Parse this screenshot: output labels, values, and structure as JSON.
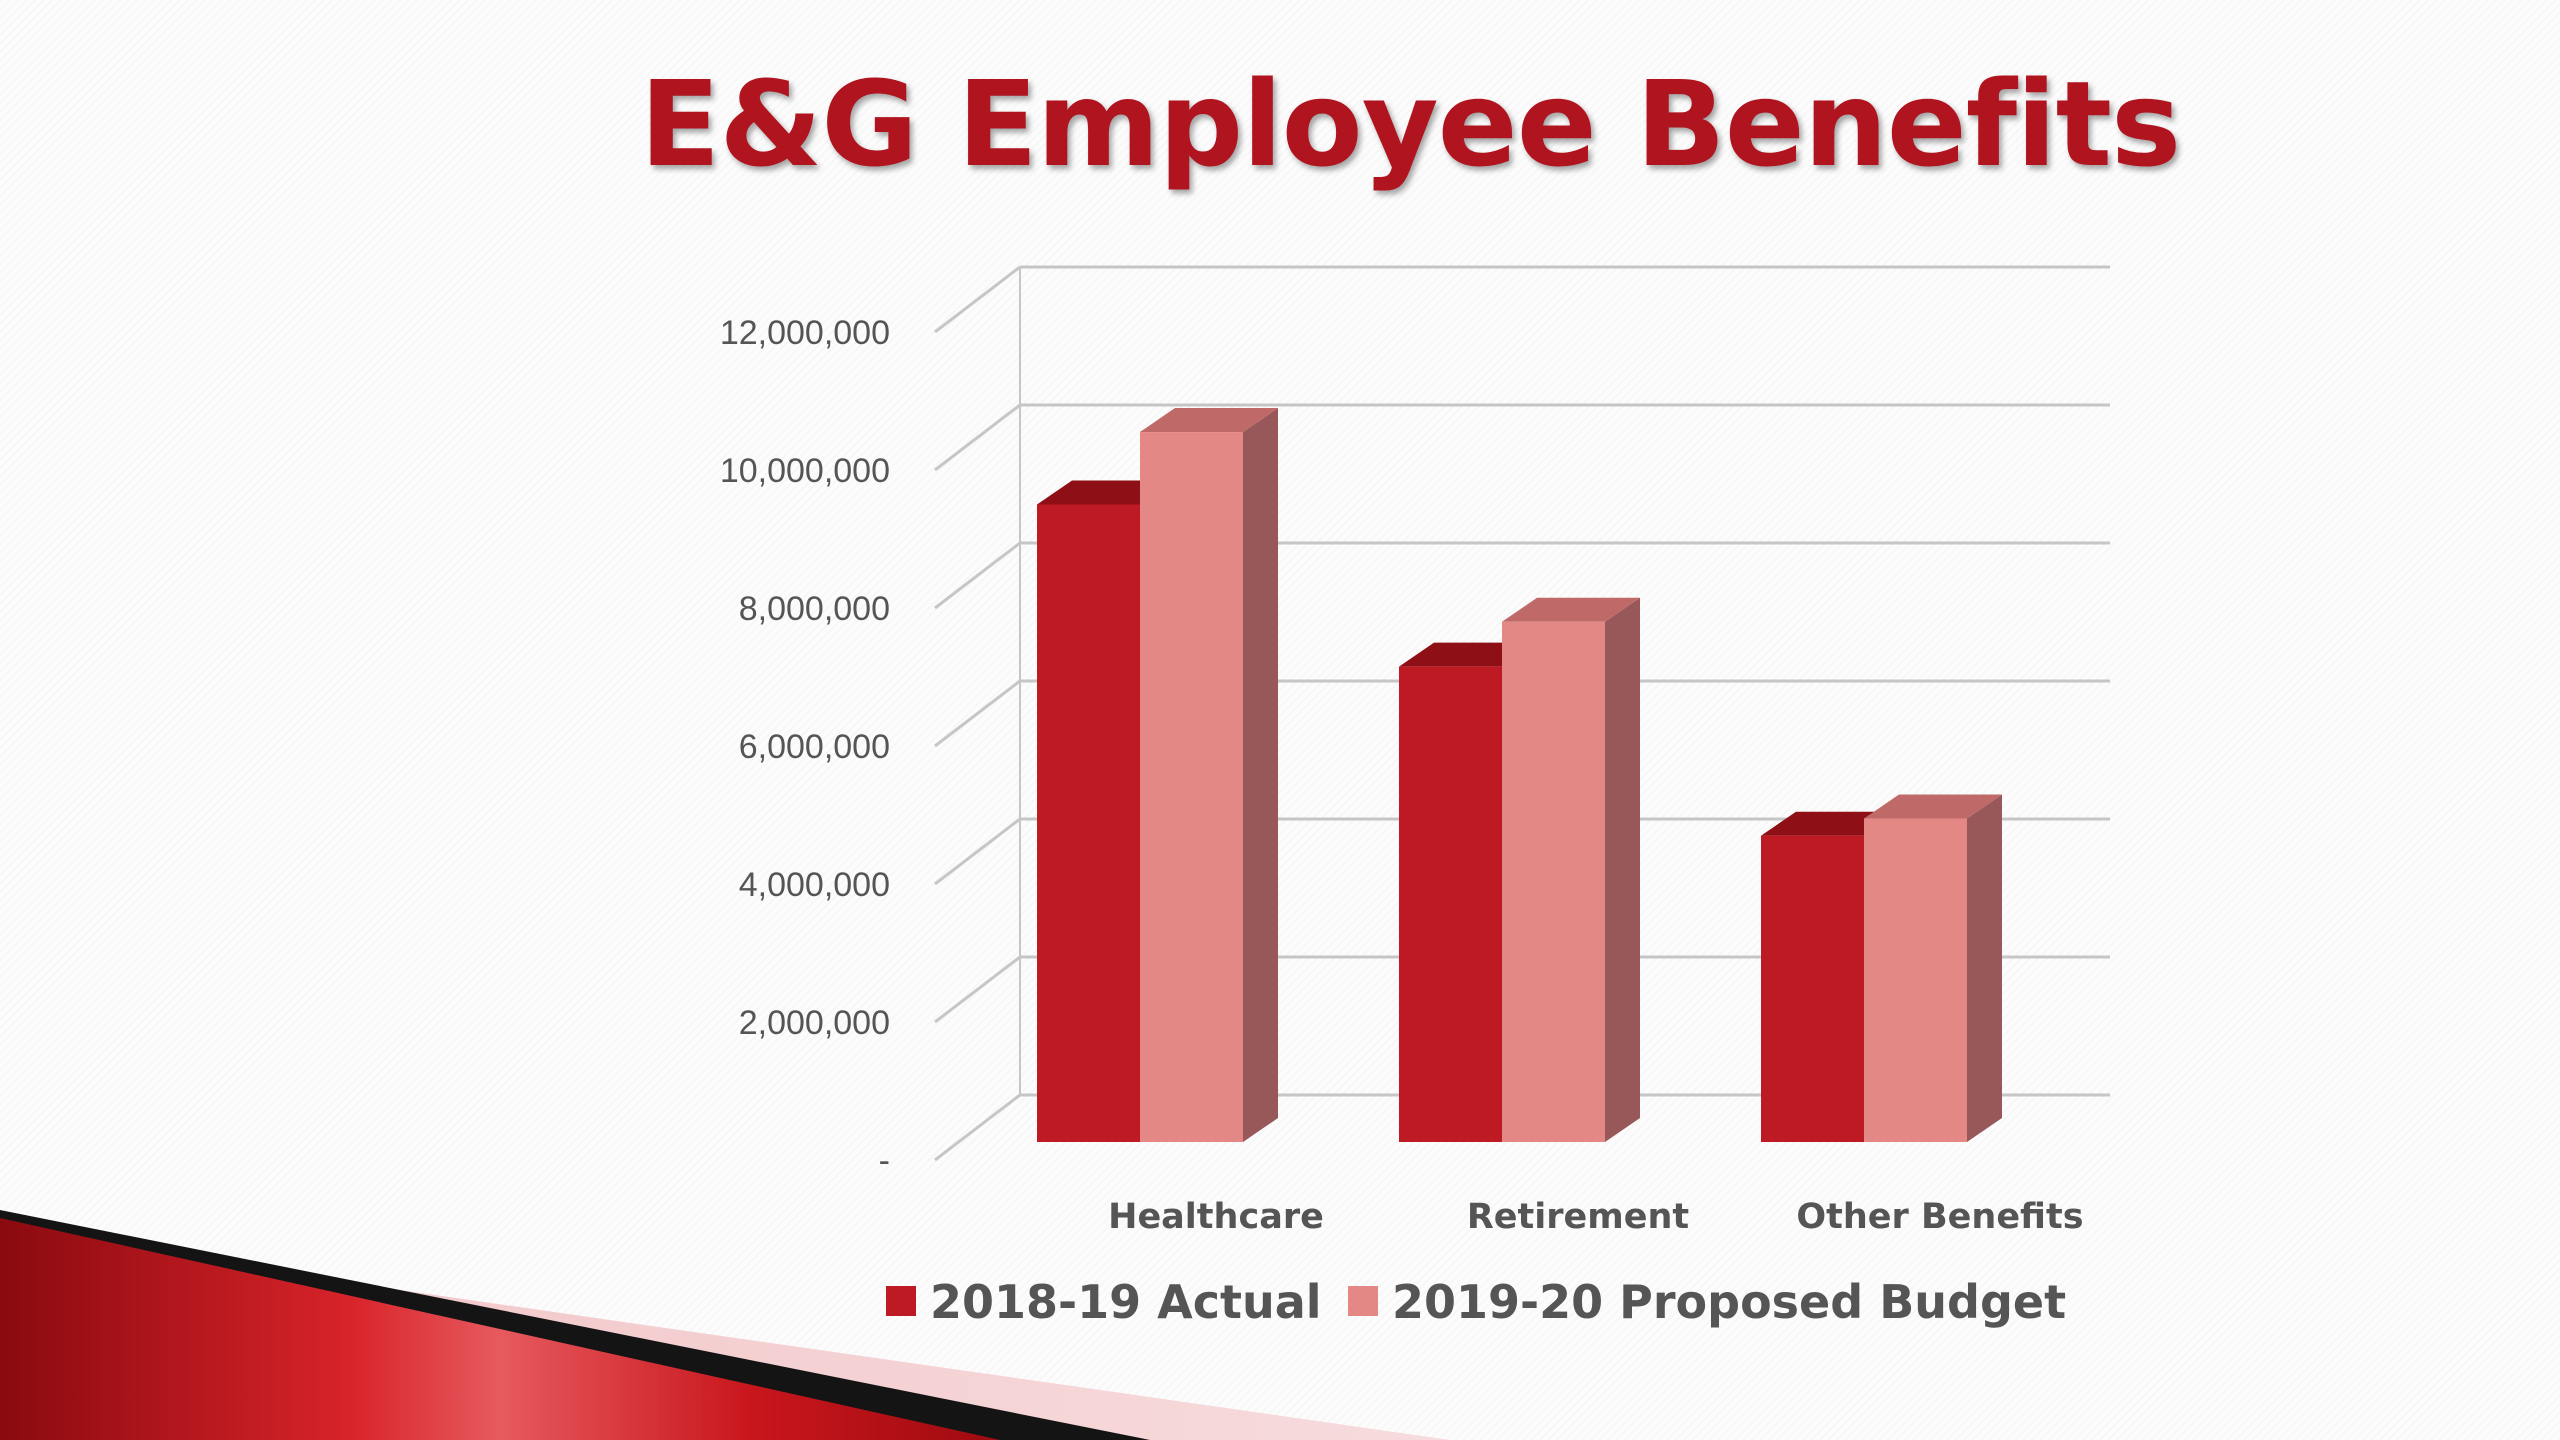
{
  "slide": {
    "title": "E&G Employee Benefits"
  },
  "colors": {
    "actual": "#be1a24",
    "actual_top": "#8e1016",
    "budget": "#e48886",
    "budget_top": "#bf6a68",
    "budget_side": "#985758",
    "grid": "#c6c6c6",
    "accent": "#b0141f"
  },
  "chart_data": {
    "type": "bar",
    "title": "",
    "xlabel": "",
    "ylabel": "",
    "categories": [
      "Healthcare",
      "Retirement",
      "Other Benefits"
    ],
    "series": [
      {
        "name": "2018-19 Actual",
        "values": [
          9500000,
          7150000,
          4700000
        ]
      },
      {
        "name": "2019-20 Proposed Budget",
        "values": [
          10550000,
          7800000,
          4950000
        ]
      }
    ],
    "ylim": [
      0,
      12000000
    ],
    "yticks": [
      0,
      2000000,
      4000000,
      6000000,
      8000000,
      10000000,
      12000000
    ],
    "ytick_labels": [
      "-",
      "2,000,000",
      "4,000,000",
      "6,000,000",
      "8,000,000",
      "10,000,000",
      "12,000,000"
    ],
    "grid": true,
    "legend_position": "bottom",
    "style": "3d-clustered-column"
  }
}
